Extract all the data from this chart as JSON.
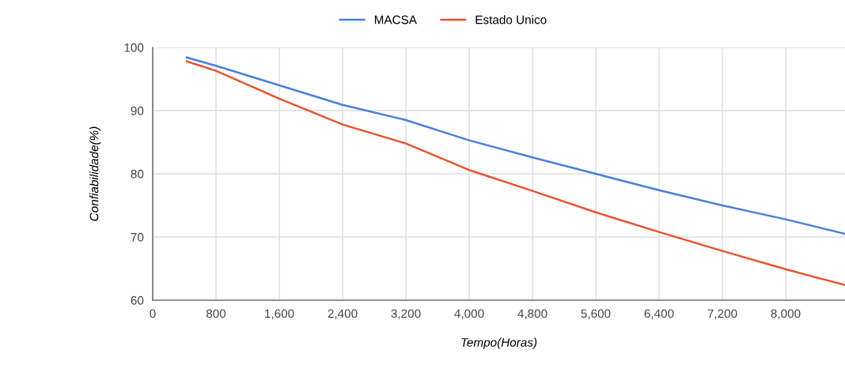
{
  "chart_data": {
    "type": "line",
    "xlabel": "Tempo(Horas)",
    "ylabel": "Confiabilidade(%)",
    "x": [
      430,
      800,
      1600,
      2400,
      3200,
      4000,
      4800,
      5600,
      6400,
      7200,
      8000,
      8750
    ],
    "series": [
      {
        "name": "MACSA",
        "color": "#4a7ee0",
        "values": [
          98.4,
          97.1,
          94.0,
          90.9,
          88.5,
          85.3,
          82.6,
          80.0,
          77.4,
          75.0,
          72.8,
          70.5
        ]
      },
      {
        "name": "Estado Unico",
        "color": "#e8522f",
        "values": [
          97.8,
          96.3,
          91.9,
          87.8,
          84.8,
          80.6,
          77.3,
          73.9,
          70.8,
          67.8,
          64.9,
          62.4
        ]
      }
    ],
    "xlim": [
      0,
      8750
    ],
    "ylim": [
      60,
      100
    ],
    "xticks": [
      {
        "value": 0,
        "label": "0"
      },
      {
        "value": 800,
        "label": "800"
      },
      {
        "value": 1600,
        "label": "1,600"
      },
      {
        "value": 2400,
        "label": "2,400"
      },
      {
        "value": 3200,
        "label": "3,200"
      },
      {
        "value": 4000,
        "label": "4,000"
      },
      {
        "value": 4800,
        "label": "4,800"
      },
      {
        "value": 5600,
        "label": "5,600"
      },
      {
        "value": 6400,
        "label": "6,400"
      },
      {
        "value": 7200,
        "label": "7,200"
      },
      {
        "value": 8000,
        "label": "8,000"
      }
    ],
    "yticks": [
      60,
      70,
      80,
      90,
      100
    ],
    "grid": true,
    "legend": "top",
    "marker": "none",
    "line_style": "solid"
  }
}
